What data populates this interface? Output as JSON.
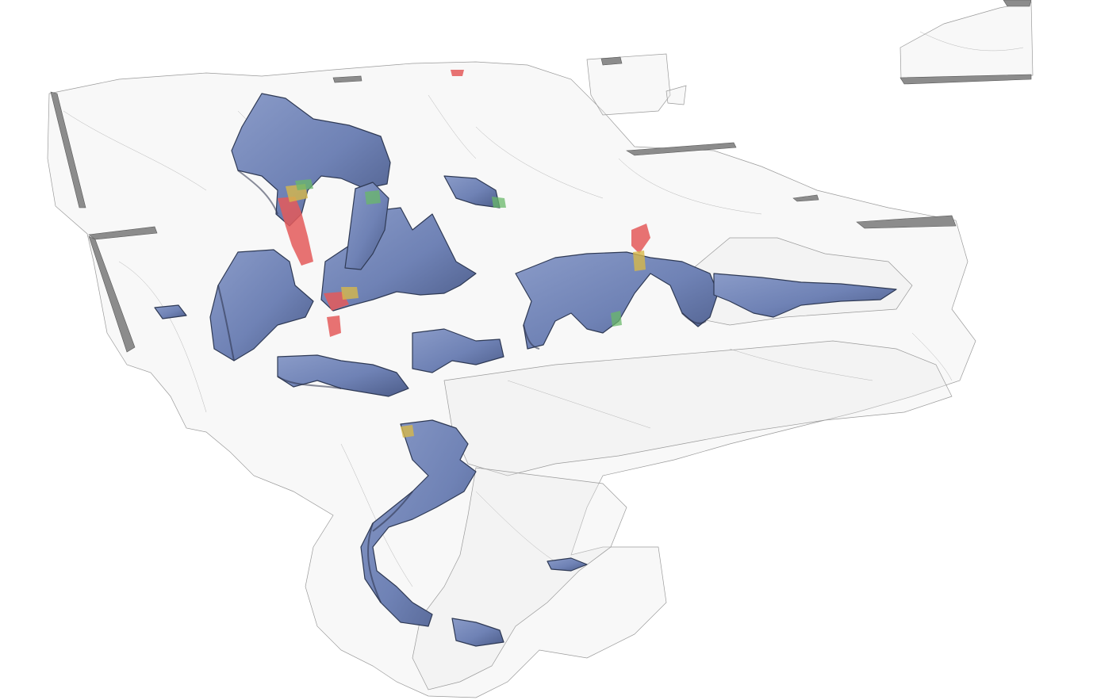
{
  "scene": {
    "kind": "3d-volume-render",
    "colors": {
      "background": "#ffffff",
      "pore_surface": "#6f82b5",
      "pore_shadow": "#2f3a55",
      "matrix_wire": "#9a9a9a",
      "slab_edge": "#8c8c8c",
      "high_value": "#e45b5b",
      "mid_value": "#d7b84a",
      "low_value": "#69b86a"
    }
  }
}
